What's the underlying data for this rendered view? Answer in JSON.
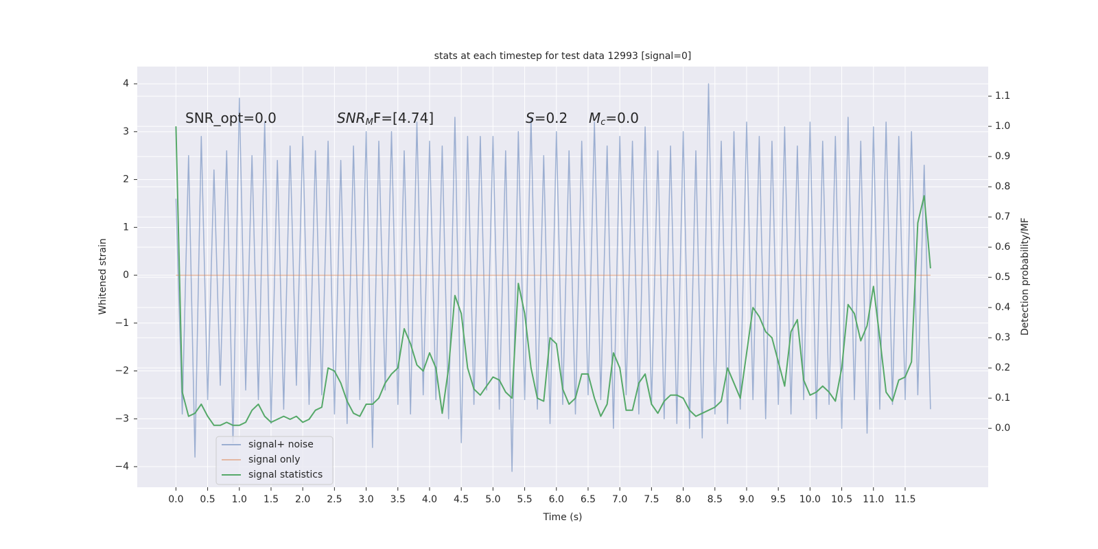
{
  "chart_data": {
    "type": "line",
    "title": "stats at each timestep for test data 12993 [signal=0]",
    "x_label": "Time (s)",
    "y_label": "Whitened strain",
    "y2_label": "Detection probability/MF",
    "annotations": [
      {
        "main": "SNR_opt=0.0"
      },
      {
        "main": "SNR",
        "sub": "M",
        "rest": "F=[4.74]",
        "italic": true
      },
      {
        "main": "S",
        "rest": "=0.2",
        "italic": true
      },
      {
        "main": "M",
        "sub": "c",
        "rest": "=0.0",
        "italic": true
      }
    ],
    "x": [
      0.0,
      0.1,
      0.2,
      0.3,
      0.4,
      0.5,
      0.6,
      0.7,
      0.8,
      0.9,
      1.0,
      1.1,
      1.2,
      1.3,
      1.4,
      1.5,
      1.6,
      1.7,
      1.8,
      1.9,
      2.0,
      2.1,
      2.2,
      2.3,
      2.4,
      2.5,
      2.6,
      2.7,
      2.8,
      2.9,
      3.0,
      3.1,
      3.2,
      3.3,
      3.4,
      3.5,
      3.6,
      3.7,
      3.8,
      3.9,
      4.0,
      4.1,
      4.2,
      4.3,
      4.4,
      4.5,
      4.6,
      4.7,
      4.8,
      4.9,
      5.0,
      5.1,
      5.2,
      5.3,
      5.4,
      5.5,
      5.6,
      5.7,
      5.8,
      5.9,
      6.0,
      6.1,
      6.2,
      6.3,
      6.4,
      6.5,
      6.6,
      6.7,
      6.8,
      6.9,
      7.0,
      7.1,
      7.2,
      7.3,
      7.4,
      7.5,
      7.6,
      7.7,
      7.8,
      7.9,
      8.0,
      8.1,
      8.2,
      8.3,
      8.4,
      8.5,
      8.6,
      8.7,
      8.8,
      8.9,
      9.0,
      9.1,
      9.2,
      9.3,
      9.4,
      9.5,
      9.6,
      9.7,
      9.8,
      9.9,
      10.0,
      10.1,
      10.2,
      10.3,
      10.4,
      10.5,
      10.6,
      10.7,
      10.8,
      10.9,
      11.0,
      11.1,
      11.2,
      11.3,
      11.4,
      11.5,
      11.6,
      11.7,
      11.8,
      11.9
    ],
    "series": [
      {
        "name": "signal+ noise",
        "color": "#4c72b0",
        "opacity": 0.5,
        "axis": "y",
        "values": [
          1.6,
          -2.9,
          2.5,
          -3.8,
          2.9,
          -2.6,
          2.2,
          -2.3,
          2.6,
          -3.5,
          3.7,
          -2.4,
          2.5,
          -2.6,
          3.2,
          -3.1,
          2.4,
          -2.8,
          2.7,
          -2.3,
          2.9,
          -2.7,
          2.6,
          -2.5,
          2.8,
          -2.9,
          2.4,
          -3.1,
          2.7,
          -2.6,
          3.0,
          -3.6,
          2.8,
          -2.4,
          3.0,
          -2.7,
          2.6,
          -2.9,
          3.2,
          -2.5,
          2.8,
          -2.6,
          2.7,
          -3.0,
          3.3,
          -3.5,
          2.9,
          -2.7,
          2.9,
          -2.4,
          2.9,
          -2.8,
          2.6,
          -4.1,
          3.0,
          -2.6,
          3.3,
          -2.8,
          2.5,
          -3.1,
          3.0,
          -2.7,
          2.6,
          -2.9,
          2.8,
          -2.5,
          3.2,
          -2.6,
          2.7,
          -3.2,
          2.9,
          -2.5,
          2.8,
          -2.9,
          3.1,
          -2.7,
          2.6,
          -3.0,
          2.7,
          -3.1,
          3.0,
          -3.2,
          2.6,
          -3.4,
          4.0,
          -2.9,
          2.8,
          -3.1,
          3.0,
          -2.8,
          3.2,
          -2.6,
          2.9,
          -3.0,
          2.8,
          -2.7,
          3.1,
          -2.9,
          2.7,
          -2.6,
          3.2,
          -3.0,
          2.8,
          -2.7,
          2.9,
          -3.2,
          3.3,
          -2.6,
          2.8,
          -3.3,
          3.1,
          -2.8,
          3.2,
          -2.7,
          2.9,
          -2.6,
          3.0,
          -2.5,
          2.3,
          -2.8
        ]
      },
      {
        "name": "signal only",
        "color": "#dd8452",
        "opacity": 0.5,
        "axis": "y",
        "values": [
          0,
          0,
          0,
          0,
          0,
          0,
          0,
          0,
          0,
          0,
          0,
          0,
          0,
          0,
          0,
          0,
          0,
          0,
          0,
          0,
          0,
          0,
          0,
          0,
          0,
          0,
          0,
          0,
          0,
          0,
          0,
          0,
          0,
          0,
          0,
          0,
          0,
          0,
          0,
          0,
          0,
          0,
          0,
          0,
          0,
          0,
          0,
          0,
          0,
          0,
          0,
          0,
          0,
          0,
          0,
          0,
          0,
          0,
          0,
          0,
          0,
          0,
          0,
          0,
          0,
          0,
          0,
          0,
          0,
          0,
          0,
          0,
          0,
          0,
          0,
          0,
          0,
          0,
          0,
          0,
          0,
          0,
          0,
          0,
          0,
          0,
          0,
          0,
          0,
          0,
          0,
          0,
          0,
          0,
          0,
          0,
          0,
          0,
          0,
          0,
          0,
          0,
          0,
          0,
          0,
          0,
          0,
          0,
          0,
          0,
          0,
          0,
          0,
          0,
          0,
          0,
          0,
          0,
          0,
          0
        ]
      },
      {
        "name": "signal statistics",
        "color": "#55a868",
        "opacity": 1,
        "axis": "y2",
        "values": [
          1.0,
          0.12,
          0.04,
          0.05,
          0.08,
          0.04,
          0.01,
          0.01,
          0.02,
          0.01,
          0.01,
          0.02,
          0.06,
          0.08,
          0.04,
          0.02,
          0.03,
          0.04,
          0.03,
          0.04,
          0.02,
          0.03,
          0.06,
          0.07,
          0.2,
          0.19,
          0.15,
          0.09,
          0.05,
          0.04,
          0.08,
          0.08,
          0.1,
          0.15,
          0.18,
          0.2,
          0.33,
          0.28,
          0.21,
          0.19,
          0.25,
          0.2,
          0.05,
          0.2,
          0.44,
          0.38,
          0.2,
          0.13,
          0.11,
          0.14,
          0.17,
          0.16,
          0.12,
          0.1,
          0.48,
          0.38,
          0.2,
          0.1,
          0.09,
          0.3,
          0.28,
          0.13,
          0.08,
          0.1,
          0.18,
          0.18,
          0.1,
          0.04,
          0.08,
          0.25,
          0.2,
          0.06,
          0.06,
          0.15,
          0.18,
          0.08,
          0.05,
          0.09,
          0.11,
          0.11,
          0.1,
          0.06,
          0.04,
          0.05,
          0.06,
          0.07,
          0.09,
          0.2,
          0.15,
          0.1,
          0.25,
          0.4,
          0.37,
          0.32,
          0.3,
          0.22,
          0.14,
          0.32,
          0.36,
          0.16,
          0.11,
          0.12,
          0.14,
          0.12,
          0.09,
          0.2,
          0.41,
          0.38,
          0.29,
          0.34,
          0.47,
          0.3,
          0.12,
          0.09,
          0.16,
          0.17,
          0.22,
          0.68,
          0.77,
          0.53
        ]
      }
    ],
    "xlim": [
      -0.61,
      12.81
    ],
    "xticks": [
      {
        "value": 0,
        "label": "0.0"
      },
      0.5,
      {
        "value": 1,
        "label": "1.0"
      },
      1.5,
      {
        "value": 2,
        "label": "2.0"
      },
      2.5,
      {
        "value": 3,
        "label": "3.0"
      },
      3.5,
      {
        "value": 4,
        "label": "4.0"
      },
      4.5,
      {
        "value": 5,
        "label": "5.0"
      },
      5.5,
      {
        "value": 6,
        "label": "6.0"
      },
      6.5,
      {
        "value": 7,
        "label": "7.0"
      },
      7.5,
      {
        "value": 8,
        "label": "8.0"
      },
      8.5,
      {
        "value": 9,
        "label": "9.0"
      },
      9.5,
      {
        "value": 10,
        "label": "10.0"
      },
      10.5,
      {
        "value": 11,
        "label": "11.0"
      },
      11.5
    ],
    "ylim": [
      -4.43,
      4.36
    ],
    "yticks": [
      {
        "value": -4,
        "label": "−4"
      },
      {
        "value": -3,
        "label": "−3"
      },
      {
        "value": -2,
        "label": "−2"
      },
      {
        "value": -1,
        "label": "−1"
      },
      0,
      1,
      2,
      3,
      4
    ],
    "y2lim": [
      -0.195,
      1.198
    ],
    "y2ticks": [
      {
        "value": 0,
        "label": "0.0"
      },
      0.1,
      0.2,
      0.3,
      0.4,
      0.5,
      0.6,
      0.7,
      0.8,
      0.9,
      {
        "value": 1,
        "label": "1.0"
      },
      1.1
    ],
    "grid": true,
    "legend": "lower left"
  }
}
